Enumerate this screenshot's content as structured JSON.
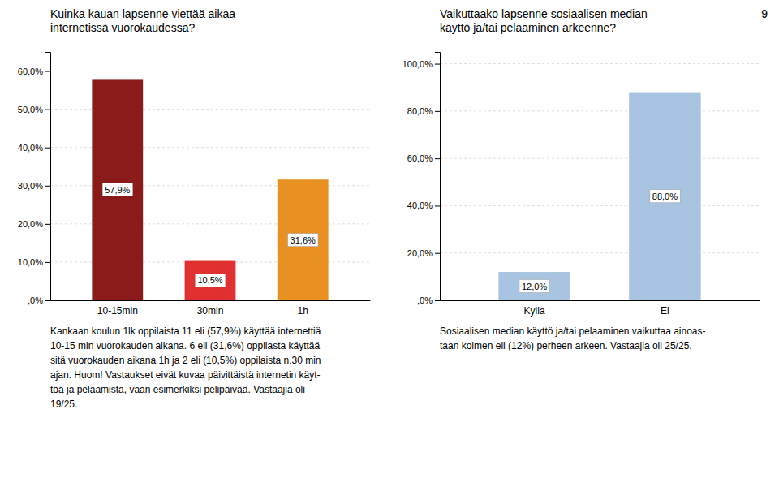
{
  "chart_data": [
    {
      "type": "bar",
      "title": "Kuinka kauan lapsenne viettää aikaa\ninternetissä vuorokaudessa?",
      "categories": [
        "10-15min",
        "30min",
        "1h"
      ],
      "values": [
        57.9,
        10.5,
        31.6
      ],
      "value_labels": [
        "57,9%",
        "10,5%",
        "31,6%"
      ],
      "data_labels": true,
      "colors": [
        "#8B1A1A",
        "#E03030",
        "#E89020"
      ],
      "ylim": [
        0,
        65
      ],
      "yticks": [
        {
          "value": 0,
          "label": ",0%"
        },
        {
          "value": 10,
          "label": "10,0%"
        },
        {
          "value": 20,
          "label": "20,0%"
        },
        {
          "value": 30,
          "label": "30,0%"
        },
        {
          "value": 40,
          "label": "40,0%"
        },
        {
          "value": 50,
          "label": "50,0%"
        },
        {
          "value": 60,
          "label": "60,0%"
        }
      ],
      "grid": true,
      "annotations": [
        "Kankaan koulun 1lk oppilaista 11 eli (57,9%) käyttää internettiä",
        "10-15 min vuorokauden aikana. 6 eli (31,6%) oppilasta käyttää",
        "sitä vuorokauden aikana 1h ja 2 eli (10,5%) oppilaista n.30 min",
        "ajan. Huom! Vastaukset eivät kuvaa päivittäistä internetin käyt-",
        "töä ja pelaamista, vaan esimerkiksi pelipäivää.  Vastaajia oli",
        "19/25."
      ]
    },
    {
      "type": "bar",
      "title": "Vaikuttaako lapsenne sosiaalisen median\nkäyttö ja/tai pelaaminen arkeenne?",
      "categories": [
        "Kylla",
        "Ei"
      ],
      "values": [
        12.0,
        88.0
      ],
      "value_labels": [
        "12,0%",
        "88,0%"
      ],
      "data_labels": true,
      "colors": [
        "#A8C4E0",
        "#A8C4E0"
      ],
      "ylim": [
        0,
        105
      ],
      "yticks": [
        {
          "value": 0,
          "label": ",0%"
        },
        {
          "value": 20,
          "label": "20,0%"
        },
        {
          "value": 40,
          "label": "40,0%"
        },
        {
          "value": 60,
          "label": "60,0%"
        },
        {
          "value": 80,
          "label": "80,0%"
        },
        {
          "value": 100,
          "label": "100,0%"
        }
      ],
      "grid": true,
      "annotations": [
        "Sosiaalisen median käyttö ja/tai pelaaminen vaikuttaa ainoas-",
        "taan kolmen eli (12%) perheen arkeen. Vastaajia oli 25/25."
      ]
    }
  ],
  "annotations": [
    "9"
  ]
}
